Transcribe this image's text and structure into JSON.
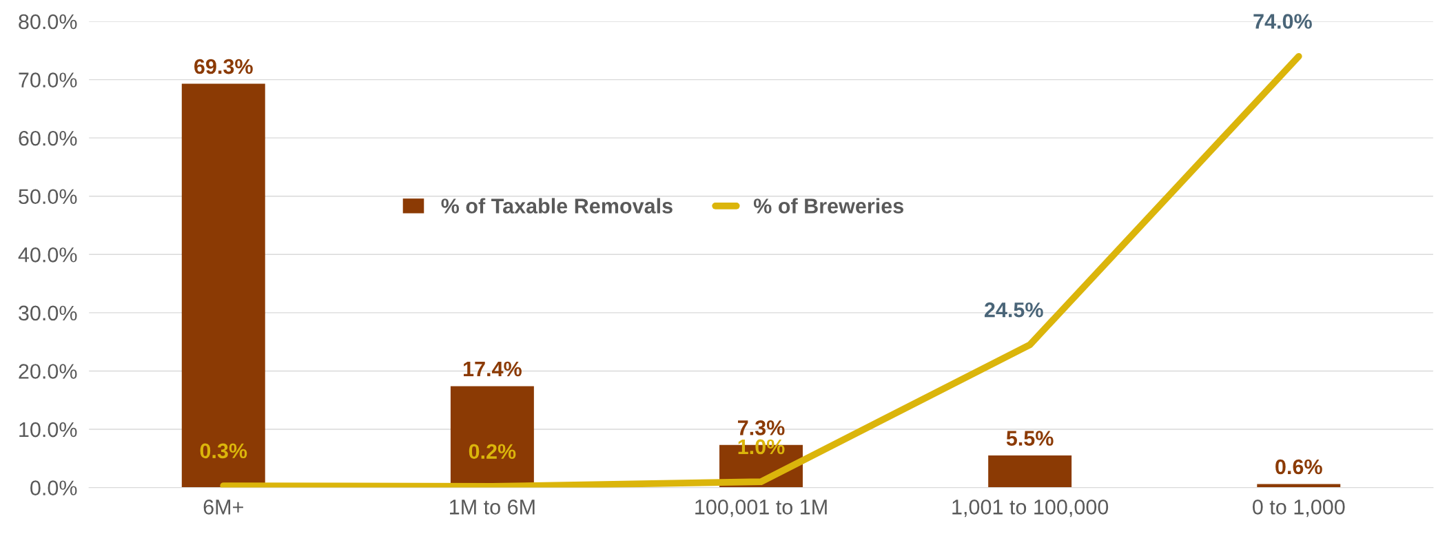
{
  "chart_data": {
    "type": "bar",
    "categories": [
      "6M+",
      "1M to 6M",
      "100,001 to 1M",
      "1,001 to 100,000",
      "0 to 1,000"
    ],
    "series": [
      {
        "name": "% of Taxable Removals",
        "color": "#8b3a04",
        "values": [
          69.3,
          17.4,
          7.3,
          5.5,
          0.6
        ],
        "value_labels": [
          "69.3%",
          "17.4%",
          "7.3%",
          "5.5%",
          "0.6%"
        ]
      },
      {
        "name": "% of Breweries",
        "type": "line",
        "color": "#dbb50b",
        "values": [
          0.3,
          0.2,
          1.0,
          24.5,
          74.0
        ],
        "value_labels": [
          "0.3%",
          "0.2%",
          "1.0%",
          "24.5%",
          "74.0%"
        ]
      }
    ],
    "ylim": [
      0,
      80
    ],
    "yticks": [
      {
        "value": 0,
        "label": "0.0%"
      },
      {
        "value": 10,
        "label": "10.0%"
      },
      {
        "value": 20,
        "label": "20.0%"
      },
      {
        "value": 30,
        "label": "30.0%"
      },
      {
        "value": 40,
        "label": "40.0%"
      },
      {
        "value": 50,
        "label": "50.0%"
      },
      {
        "value": 60,
        "label": "60.0%"
      },
      {
        "value": 70,
        "label": "70.0%"
      },
      {
        "value": 80,
        "label": "80.0%"
      }
    ],
    "grid": "y",
    "legend": "center",
    "marker": "none",
    "line_style": "solid"
  }
}
